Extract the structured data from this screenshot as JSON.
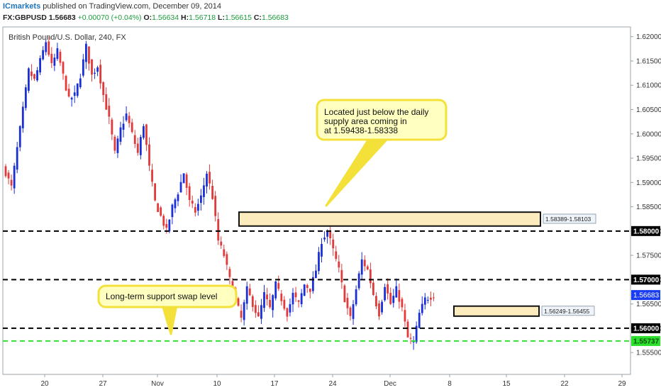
{
  "header": {
    "publisher": "ICmarkets",
    "published_text": "published on TradingView.com, December 09, 2014",
    "symbol": "FX:GBPUSD",
    "last": "1.56683",
    "change": "+0.00070 (+0.04%)",
    "open_label": "O:",
    "open": "1.56634",
    "high_label": "H:",
    "high": "1.56718",
    "low_label": "L:",
    "low": "1.56615",
    "close_label": "C:",
    "close": "1.56683"
  },
  "chart_data": {
    "type": "candlestick",
    "title": "British Pound/U.S. Dollar, 240, FX",
    "ylim": [
      1.5505,
      1.622
    ],
    "y_ticks": [
      "1.55500",
      "1.56000",
      "1.56500",
      "1.57000",
      "1.57500",
      "1.58000",
      "1.58500",
      "1.59000",
      "1.59500",
      "1.60000",
      "1.60500",
      "1.61000",
      "1.61500",
      "1.62000"
    ],
    "x_ticks": [
      "20",
      "27",
      "Nov",
      "10",
      "17",
      "24",
      "Dec",
      "8",
      "15",
      "22",
      "29"
    ],
    "horizontal_levels": [
      {
        "value": 1.58,
        "label": "1.58000",
        "style": "dashed",
        "color": "#000000"
      },
      {
        "value": 1.57,
        "label": "1.57000",
        "style": "dashed",
        "color": "#000000"
      },
      {
        "value": 1.56,
        "label": "1.56000",
        "style": "dashed",
        "color": "#000000"
      },
      {
        "value": 1.55737,
        "label": "1.55737",
        "style": "dashed",
        "color": "#2ee02e"
      }
    ],
    "last_price": {
      "value": 1.56683,
      "label": "1.56683",
      "color": "#1a3cf0"
    },
    "zones": [
      {
        "top": 1.58389,
        "bottom": 1.58103,
        "label": "1.58389-1.58103"
      },
      {
        "top": 1.56455,
        "bottom": 1.56249,
        "label": "1.56249-1.56455"
      }
    ],
    "annotations": [
      {
        "text": [
          "Located just below the daily",
          "supply area coming in",
          "at 1.59438-1.58338"
        ]
      },
      {
        "text": [
          "Long-term support swap level"
        ]
      }
    ],
    "colors": {
      "up": "#1a2fd6",
      "down": "#e23a3a",
      "zone_fill": "#fbe7b2",
      "callout_fill": "#ffffc0",
      "callout_border": "#f3e13a"
    },
    "close_path_anchors": [
      [
        0,
        1.592
      ],
      [
        2,
        1.589
      ],
      [
        4,
        1.597
      ],
      [
        6,
        1.605
      ],
      [
        8,
        1.613
      ],
      [
        10,
        1.611
      ],
      [
        12,
        1.615
      ],
      [
        14,
        1.619
      ],
      [
        16,
        1.614
      ],
      [
        18,
        1.617
      ],
      [
        20,
        1.612
      ],
      [
        22,
        1.607
      ],
      [
        24,
        1.608
      ],
      [
        26,
        1.612
      ],
      [
        28,
        1.618
      ],
      [
        30,
        1.612
      ],
      [
        32,
        1.614
      ],
      [
        34,
        1.608
      ],
      [
        36,
        1.603
      ],
      [
        38,
        1.596
      ],
      [
        40,
        1.601
      ],
      [
        42,
        1.604
      ],
      [
        44,
        1.6
      ],
      [
        46,
        1.596
      ],
      [
        48,
        1.602
      ],
      [
        50,
        1.593
      ],
      [
        52,
        1.586
      ],
      [
        54,
        1.583
      ],
      [
        56,
        1.58
      ],
      [
        58,
        1.585
      ],
      [
        60,
        1.588
      ],
      [
        62,
        1.592
      ],
      [
        64,
        1.586
      ],
      [
        66,
        1.584
      ],
      [
        68,
        1.587
      ],
      [
        70,
        1.592
      ],
      [
        72,
        1.587
      ],
      [
        74,
        1.578
      ],
      [
        76,
        1.575
      ],
      [
        78,
        1.57
      ],
      [
        80,
        1.566
      ],
      [
        82,
        1.562
      ],
      [
        84,
        1.568
      ],
      [
        86,
        1.565
      ],
      [
        88,
        1.562
      ],
      [
        90,
        1.567
      ],
      [
        92,
        1.564
      ],
      [
        94,
        1.569
      ],
      [
        96,
        1.566
      ],
      [
        98,
        1.563
      ],
      [
        100,
        1.567
      ],
      [
        102,
        1.565
      ],
      [
        104,
        1.569
      ],
      [
        106,
        1.568
      ],
      [
        108,
        1.572
      ],
      [
        110,
        1.578
      ],
      [
        112,
        1.58
      ],
      [
        114,
        1.576
      ],
      [
        116,
        1.572
      ],
      [
        118,
        1.566
      ],
      [
        120,
        1.562
      ],
      [
        122,
        1.568
      ],
      [
        124,
        1.574
      ],
      [
        126,
        1.572
      ],
      [
        128,
        1.567
      ],
      [
        130,
        1.563
      ],
      [
        132,
        1.569
      ],
      [
        134,
        1.565
      ],
      [
        136,
        1.568
      ],
      [
        138,
        1.564
      ],
      [
        140,
        1.558
      ],
      [
        142,
        1.557
      ],
      [
        144,
        1.563
      ],
      [
        146,
        1.566
      ],
      [
        148,
        1.5665
      ],
      [
        149,
        1.56683
      ]
    ]
  }
}
